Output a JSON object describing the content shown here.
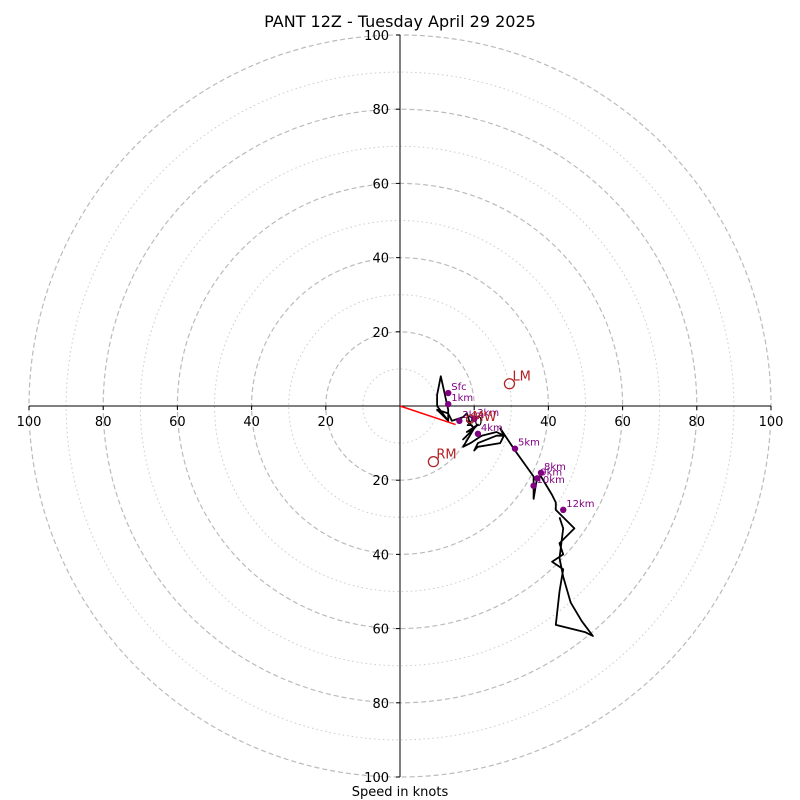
{
  "chart_data": {
    "type": "hodograph",
    "title": "PANT 12Z - Tuesday April 29 2025",
    "xlabel": "Speed in knots",
    "units": "knots",
    "range": [
      -100,
      100
    ],
    "ring_step_major": 20,
    "ring_step_minor": 10,
    "tick_labels": [
      "100",
      "80",
      "60",
      "40",
      "20",
      "20",
      "40",
      "60",
      "80",
      "100"
    ],
    "ytick_labels_up": [
      "20",
      "40",
      "60",
      "80",
      "100"
    ],
    "ytick_labels_down": [
      "20",
      "40",
      "60",
      "80",
      "100"
    ],
    "trace": [
      [
        13,
        -4
      ],
      [
        13,
        -1
      ],
      [
        11,
        8
      ],
      [
        10,
        3
      ],
      [
        10,
        0
      ],
      [
        13,
        -4
      ],
      [
        10,
        -1
      ],
      [
        13,
        -2
      ],
      [
        14,
        -4
      ],
      [
        17,
        -3
      ],
      [
        18,
        -2
      ],
      [
        19,
        -5
      ],
      [
        18,
        -4
      ],
      [
        20,
        -6
      ],
      [
        18,
        -7
      ],
      [
        21,
        -5
      ],
      [
        18,
        -8
      ],
      [
        17,
        -9
      ],
      [
        20,
        -6
      ],
      [
        17,
        -11
      ],
      [
        19,
        -10
      ],
      [
        22,
        -8
      ],
      [
        26,
        -7
      ],
      [
        28,
        -8
      ],
      [
        27,
        -10
      ],
      [
        21,
        -11
      ],
      [
        20,
        -12
      ],
      [
        21,
        -10
      ],
      [
        26,
        -8
      ],
      [
        28,
        -8
      ],
      [
        27,
        -6
      ],
      [
        29,
        -9
      ],
      [
        31,
        -12
      ],
      [
        36,
        -19
      ],
      [
        36,
        -20
      ],
      [
        36,
        -25
      ],
      [
        37,
        -19
      ],
      [
        38,
        -19
      ],
      [
        41,
        -24
      ],
      [
        42,
        -26
      ],
      [
        42,
        -28
      ],
      [
        47,
        -33
      ],
      [
        43,
        -37
      ],
      [
        44,
        -40
      ],
      [
        41,
        -42
      ],
      [
        44,
        -44
      ],
      [
        43,
        -50
      ],
      [
        42,
        -59
      ],
      [
        50,
        -61
      ],
      [
        52,
        -62
      ],
      [
        49,
        -58
      ],
      [
        46,
        -53
      ],
      [
        44,
        -46
      ],
      [
        43,
        -41
      ],
      [
        44,
        -33
      ],
      [
        43,
        -30
      ]
    ],
    "height_points": [
      {
        "label": "Sfc",
        "x": 13,
        "y": 3.5
      },
      {
        "label": "1km",
        "x": 13,
        "y": 0.5
      },
      {
        "label": "2km",
        "x": 16,
        "y": -4
      },
      {
        "label": "3km",
        "x": 20,
        "y": -3.5
      },
      {
        "label": "4km",
        "x": 21,
        "y": -7.5
      },
      {
        "label": "5km",
        "x": 31,
        "y": -11.5
      },
      {
        "label": "8km",
        "x": 38,
        "y": -18
      },
      {
        "label": "9km",
        "x": 37,
        "y": -19.5
      },
      {
        "label": "10km",
        "x": 36,
        "y": -21.5
      },
      {
        "label": "12km",
        "x": 44,
        "y": -28
      }
    ],
    "storm_motion": [
      {
        "label": "LM",
        "x": 29.5,
        "y": 6
      },
      {
        "label": "RM",
        "x": 9,
        "y": -15
      }
    ],
    "mean_wind": {
      "label": "MW",
      "x": 19,
      "y": -3.5
    },
    "shear_vector": {
      "x": 15,
      "y": -5
    },
    "colors": {
      "trace": "#000000",
      "height_points": "#800080",
      "storm_motion": "#b22222",
      "shear": "#ff0000",
      "ring_major": "#bbbbbb",
      "ring_minor": "#cccccc",
      "axes": "#000000"
    }
  }
}
